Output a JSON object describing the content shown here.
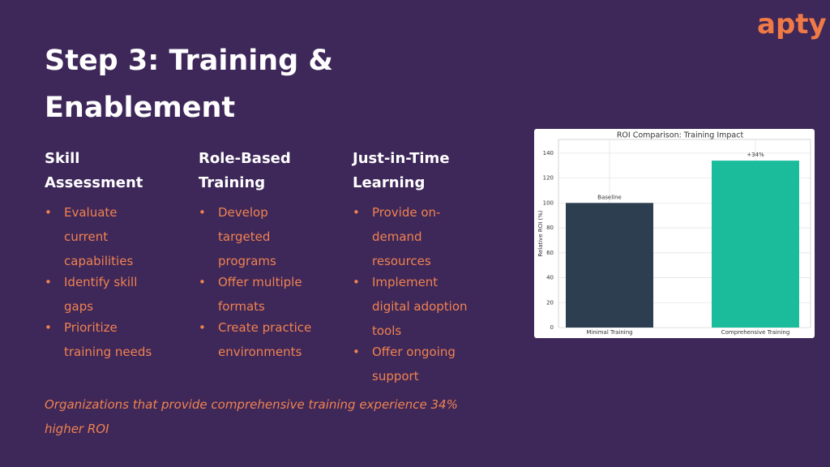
{
  "header": {
    "title": "Step 3: Training & Enablement",
    "logo": "apty"
  },
  "columns": [
    {
      "heading": "Skill Assessment",
      "bullets": [
        "Evaluate current capabilities",
        "Identify skill gaps",
        "Prioritize training needs"
      ]
    },
    {
      "heading": "Role-Based Training",
      "bullets": [
        "Develop targeted programs",
        "Offer multiple formats",
        "Create practice environments"
      ]
    },
    {
      "heading": "Just-in-Time Learning",
      "bullets": [
        "Provide on-demand resources",
        "Implement digital adoption tools",
        "Offer ongoing support"
      ]
    }
  ],
  "note": "Organizations that provide comprehensive training experience 34% higher ROI",
  "chart_data": {
    "type": "bar",
    "title": "ROI Comparison: Training Impact",
    "categories": [
      "Minimal Training",
      "Comprehensive Training"
    ],
    "values": [
      100,
      134
    ],
    "colors": [
      "#2c3e50",
      "#1abc9c"
    ],
    "annotations": [
      "Baseline",
      "+34%"
    ],
    "ylabel": "Relative ROI (%)",
    "ylim": [
      0,
      151
    ],
    "yticks": [
      0,
      20,
      40,
      60,
      80,
      100,
      120,
      140
    ],
    "grid": true
  }
}
